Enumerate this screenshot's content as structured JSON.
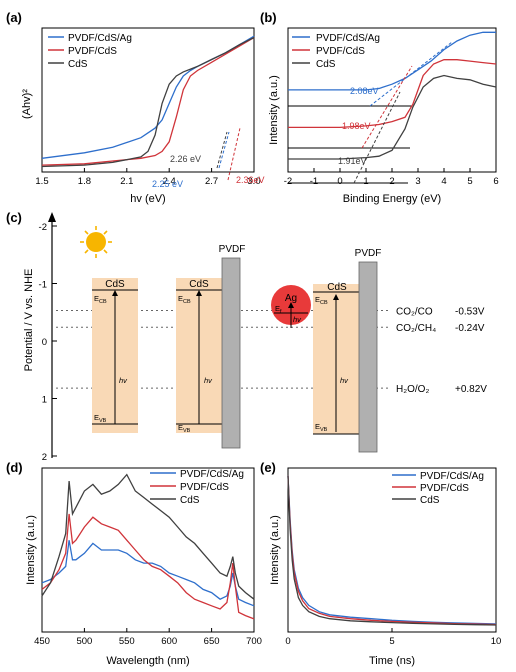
{
  "colors": {
    "blue": "#2e6fcc",
    "red": "#d0343a",
    "gray": "#404040",
    "cds_band": "#f9d9b6",
    "pvdf_bar": "#b0b0b0"
  },
  "panel_a": {
    "label": "(a)",
    "icon": "sun-icon",
    "chart_data": {
      "type": "line",
      "xlabel": "hv (eV)",
      "ylabel": "(Ahv)²",
      "xlim": [
        1.5,
        3.0
      ],
      "xticks": [
        "1.5",
        "1.8",
        "2.1",
        "2.4",
        "2.7",
        "3.0"
      ],
      "legend_position": "top-left",
      "series": [
        {
          "name": "PVDF/CdS/Ag",
          "color": "#2e6fcc",
          "x": [
            1.5,
            1.8,
            2.0,
            2.2,
            2.3,
            2.35,
            2.4,
            2.45,
            2.5,
            2.55,
            2.6,
            2.7,
            2.8,
            2.9,
            3.0
          ],
          "y": [
            0.1,
            0.14,
            0.18,
            0.25,
            0.32,
            0.38,
            0.5,
            0.62,
            0.7,
            0.74,
            0.77,
            0.82,
            0.87,
            0.93,
            0.99
          ]
        },
        {
          "name": "PVDF/CdS",
          "color": "#d0343a",
          "x": [
            1.5,
            1.8,
            2.0,
            2.2,
            2.3,
            2.35,
            2.4,
            2.45,
            2.5,
            2.55,
            2.6,
            2.7,
            2.8,
            2.9,
            3.0
          ],
          "y": [
            0.05,
            0.06,
            0.08,
            0.1,
            0.12,
            0.15,
            0.22,
            0.4,
            0.6,
            0.7,
            0.74,
            0.8,
            0.86,
            0.92,
            0.98
          ]
        },
        {
          "name": "CdS",
          "color": "#404040",
          "x": [
            1.5,
            1.8,
            2.0,
            2.2,
            2.25,
            2.3,
            2.35,
            2.4,
            2.45,
            2.5,
            2.6,
            2.7,
            2.8,
            2.9,
            3.0
          ],
          "y": [
            0.04,
            0.05,
            0.07,
            0.11,
            0.15,
            0.27,
            0.5,
            0.64,
            0.7,
            0.73,
            0.77,
            0.82,
            0.87,
            0.93,
            0.98
          ]
        }
      ],
      "annotations": [
        {
          "text": "2.26 eV",
          "color": "#404040"
        },
        {
          "text": "2.25 eV",
          "color": "#2e6fcc"
        },
        {
          "text": "2.36eV",
          "color": "#d0343a"
        }
      ]
    }
  },
  "panel_b": {
    "label": "(b)",
    "chart_data": {
      "type": "line",
      "xlabel": "Binding Energy (eV)",
      "ylabel": "Intensity (a.u.)",
      "xlim": [
        -2,
        6
      ],
      "xticks": [
        "-2",
        "-1",
        "0",
        "1",
        "2",
        "3",
        "4",
        "5",
        "6"
      ],
      "legend_position": "top-left",
      "series": [
        {
          "name": "PVDF/CdS/Ag",
          "color": "#2e6fcc",
          "x": [
            -2,
            -1,
            0,
            1,
            1.5,
            2,
            2.5,
            3,
            3.5,
            4,
            4.5,
            5,
            5.5,
            6
          ],
          "y": [
            0.62,
            0.62,
            0.62,
            0.62,
            0.63,
            0.66,
            0.7,
            0.76,
            0.82,
            0.9,
            0.96,
            1.0,
            1.02,
            1.02
          ]
        },
        {
          "name": "PVDF/CdS",
          "color": "#d0343a",
          "x": [
            -2,
            -1,
            0,
            1,
            1.5,
            2,
            2.5,
            2.8,
            3.2,
            3.6,
            4,
            4.5,
            5,
            5.5,
            6
          ],
          "y": [
            0.36,
            0.36,
            0.36,
            0.37,
            0.38,
            0.4,
            0.43,
            0.52,
            0.72,
            0.8,
            0.83,
            0.83,
            0.82,
            0.81,
            0.8
          ]
        },
        {
          "name": "CdS",
          "color": "#404040",
          "x": [
            -2,
            -1,
            0,
            1,
            1.5,
            2,
            2.5,
            2.8,
            3.2,
            3.6,
            4,
            4.5,
            5,
            5.5,
            6
          ],
          "y": [
            0.14,
            0.14,
            0.14,
            0.15,
            0.16,
            0.2,
            0.35,
            0.5,
            0.64,
            0.7,
            0.72,
            0.7,
            0.69,
            0.66,
            0.64
          ]
        }
      ],
      "annotations": [
        {
          "text": "2.08eV",
          "color": "#2e6fcc"
        },
        {
          "text": "1.98eV",
          "color": "#d0343a"
        },
        {
          "text": "1.91eV",
          "color": "#404040"
        }
      ]
    }
  },
  "panel_c": {
    "label": "(c)",
    "ylabel": "Potential / V vs. NHE",
    "ylim": [
      -2,
      2
    ],
    "yticks": [
      "-2",
      "-1",
      "0",
      "1",
      "2"
    ],
    "pvdf_label": "PVDF",
    "cds_label": "CdS",
    "ag_label": "Ag",
    "ecb": "E",
    "ecb_sub": "CB",
    "evb": "E",
    "evb_sub": "VB",
    "ef": "E",
    "ef_sub": "f",
    "hv": "hv",
    "levels": [
      {
        "couple": "CO₂/CO",
        "potential_text": "-0.53V",
        "potential": -0.53
      },
      {
        "couple": "CO₂/CH₄",
        "potential_text": "-0.24V",
        "potential": -0.24
      },
      {
        "couple": "H₂O/O₂",
        "potential_text": "+0.82V",
        "potential": 0.82
      }
    ]
  },
  "panel_d": {
    "label": "(d)",
    "chart_data": {
      "type": "line",
      "xlabel": "Wavelength (nm)",
      "ylabel": "Intensity (a.u.)",
      "xlim": [
        450,
        700
      ],
      "xticks": [
        "450",
        "500",
        "550",
        "600",
        "650",
        "700"
      ],
      "legend_position": "top-right",
      "series": [
        {
          "name": "PVDF/CdS/Ag",
          "color": "#2e6fcc",
          "x": [
            450,
            460,
            470,
            478,
            482,
            486,
            490,
            500,
            510,
            520,
            530,
            540,
            550,
            560,
            570,
            580,
            590,
            600,
            610,
            620,
            630,
            640,
            650,
            660,
            668,
            672,
            675,
            678,
            682,
            690,
            700
          ],
          "y": [
            0.3,
            0.32,
            0.36,
            0.4,
            0.56,
            0.44,
            0.44,
            0.48,
            0.54,
            0.5,
            0.5,
            0.5,
            0.48,
            0.44,
            0.42,
            0.42,
            0.4,
            0.36,
            0.34,
            0.32,
            0.3,
            0.26,
            0.24,
            0.2,
            0.22,
            0.28,
            0.36,
            0.28,
            0.2,
            0.18,
            0.16
          ]
        },
        {
          "name": "PVDF/CdS",
          "color": "#d0343a",
          "x": [
            450,
            460,
            470,
            478,
            482,
            486,
            490,
            500,
            510,
            520,
            530,
            540,
            550,
            560,
            570,
            580,
            590,
            600,
            610,
            620,
            630,
            640,
            650,
            660,
            668,
            672,
            675,
            678,
            682,
            690,
            700
          ],
          "y": [
            0.26,
            0.3,
            0.38,
            0.48,
            0.72,
            0.54,
            0.56,
            0.64,
            0.7,
            0.66,
            0.64,
            0.62,
            0.56,
            0.5,
            0.44,
            0.4,
            0.38,
            0.34,
            0.3,
            0.24,
            0.2,
            0.18,
            0.16,
            0.14,
            0.18,
            0.3,
            0.42,
            0.28,
            0.12,
            0.1,
            0.08
          ]
        },
        {
          "name": "CdS",
          "color": "#404040",
          "x": [
            450,
            460,
            470,
            478,
            482,
            486,
            490,
            500,
            510,
            520,
            530,
            540,
            550,
            560,
            570,
            580,
            590,
            600,
            610,
            620,
            630,
            640,
            650,
            660,
            668,
            672,
            675,
            678,
            682,
            690,
            700
          ],
          "y": [
            0.22,
            0.3,
            0.46,
            0.6,
            0.92,
            0.72,
            0.76,
            0.86,
            0.9,
            0.84,
            0.86,
            0.9,
            0.96,
            0.86,
            0.82,
            0.78,
            0.74,
            0.7,
            0.64,
            0.58,
            0.54,
            0.48,
            0.42,
            0.36,
            0.34,
            0.4,
            0.46,
            0.36,
            0.28,
            0.24,
            0.2
          ]
        }
      ]
    }
  },
  "panel_e": {
    "label": "(e)",
    "chart_data": {
      "type": "line",
      "xlabel": "Time (ns)",
      "ylabel": "Intensity (a.u.)",
      "xlim": [
        0,
        10
      ],
      "xticks": [
        "0",
        "5",
        "10"
      ],
      "legend_position": "top-right",
      "series": [
        {
          "name": "PVDF/CdS/Ag",
          "color": "#2e6fcc",
          "x": [
            0,
            0.1,
            0.2,
            0.3,
            0.5,
            0.7,
            1,
            1.5,
            2,
            3,
            4,
            5,
            6,
            7,
            8,
            9,
            10
          ],
          "y": [
            1.0,
            0.72,
            0.52,
            0.4,
            0.28,
            0.22,
            0.17,
            0.13,
            0.11,
            0.095,
            0.085,
            0.075,
            0.068,
            0.062,
            0.058,
            0.055,
            0.052
          ]
        },
        {
          "name": "PVDF/CdS",
          "color": "#d0343a",
          "x": [
            0,
            0.1,
            0.2,
            0.3,
            0.5,
            0.7,
            1,
            1.5,
            2,
            3,
            4,
            5,
            6,
            7,
            8,
            9,
            10
          ],
          "y": [
            1.0,
            0.7,
            0.5,
            0.38,
            0.26,
            0.2,
            0.15,
            0.12,
            0.1,
            0.085,
            0.075,
            0.068,
            0.062,
            0.058,
            0.054,
            0.051,
            0.048
          ]
        },
        {
          "name": "CdS",
          "color": "#404040",
          "x": [
            0,
            0.1,
            0.2,
            0.3,
            0.5,
            0.7,
            1,
            1.5,
            2,
            3,
            4,
            5,
            6,
            7,
            8,
            9,
            10
          ],
          "y": [
            1.0,
            0.66,
            0.46,
            0.34,
            0.22,
            0.17,
            0.13,
            0.1,
            0.085,
            0.072,
            0.065,
            0.06,
            0.056,
            0.052,
            0.049,
            0.047,
            0.045
          ]
        }
      ]
    }
  }
}
